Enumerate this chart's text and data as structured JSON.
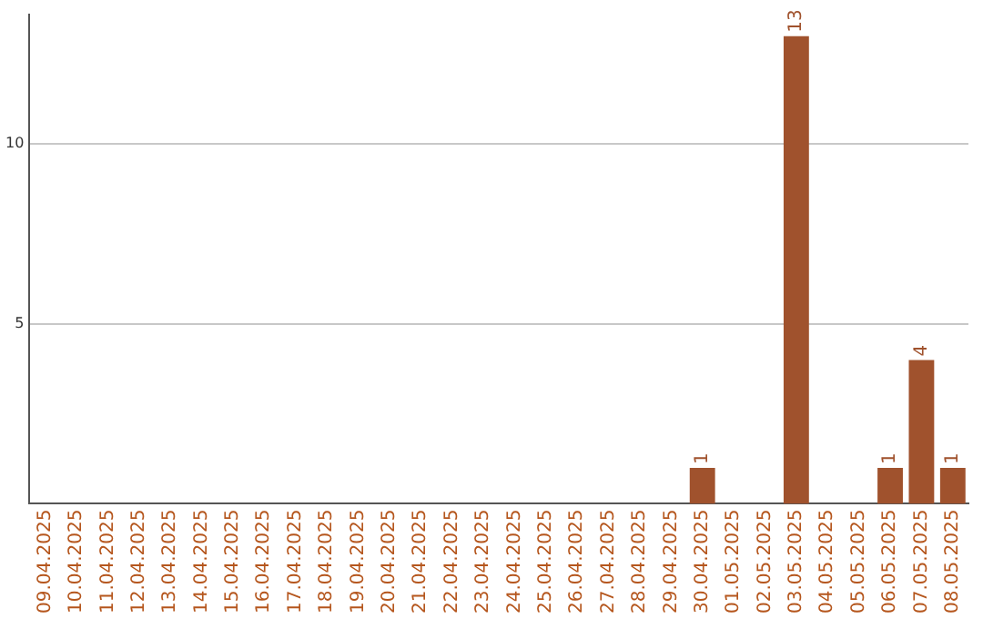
{
  "chart_data": {
    "type": "bar",
    "categories": [
      "09.04.2025",
      "10.04.2025",
      "11.04.2025",
      "12.04.2025",
      "13.04.2025",
      "14.04.2025",
      "15.04.2025",
      "16.04.2025",
      "17.04.2025",
      "18.04.2025",
      "19.04.2025",
      "20.04.2025",
      "21.04.2025",
      "22.04.2025",
      "23.04.2025",
      "24.04.2025",
      "25.04.2025",
      "26.04.2025",
      "27.04.2025",
      "28.04.2025",
      "29.04.2025",
      "30.04.2025",
      "01.05.2025",
      "02.05.2025",
      "03.05.2025",
      "04.05.2025",
      "05.05.2025",
      "06.05.2025",
      "07.05.2025",
      "08.05.2025"
    ],
    "values": [
      0,
      0,
      0,
      0,
      0,
      0,
      0,
      0,
      0,
      0,
      0,
      0,
      0,
      0,
      0,
      0,
      0,
      0,
      0,
      0,
      0,
      1,
      0,
      0,
      13,
      0,
      0,
      1,
      4,
      1
    ],
    "value_labels": [
      null,
      null,
      null,
      null,
      null,
      null,
      null,
      null,
      null,
      null,
      null,
      null,
      null,
      null,
      null,
      null,
      null,
      null,
      null,
      null,
      null,
      "1",
      null,
      null,
      "13",
      null,
      null,
      "1",
      "4",
      "1"
    ],
    "color": "#a0522d",
    "ylim": [
      0,
      13.6
    ],
    "yticks": [
      5,
      10
    ],
    "grid": "y"
  }
}
